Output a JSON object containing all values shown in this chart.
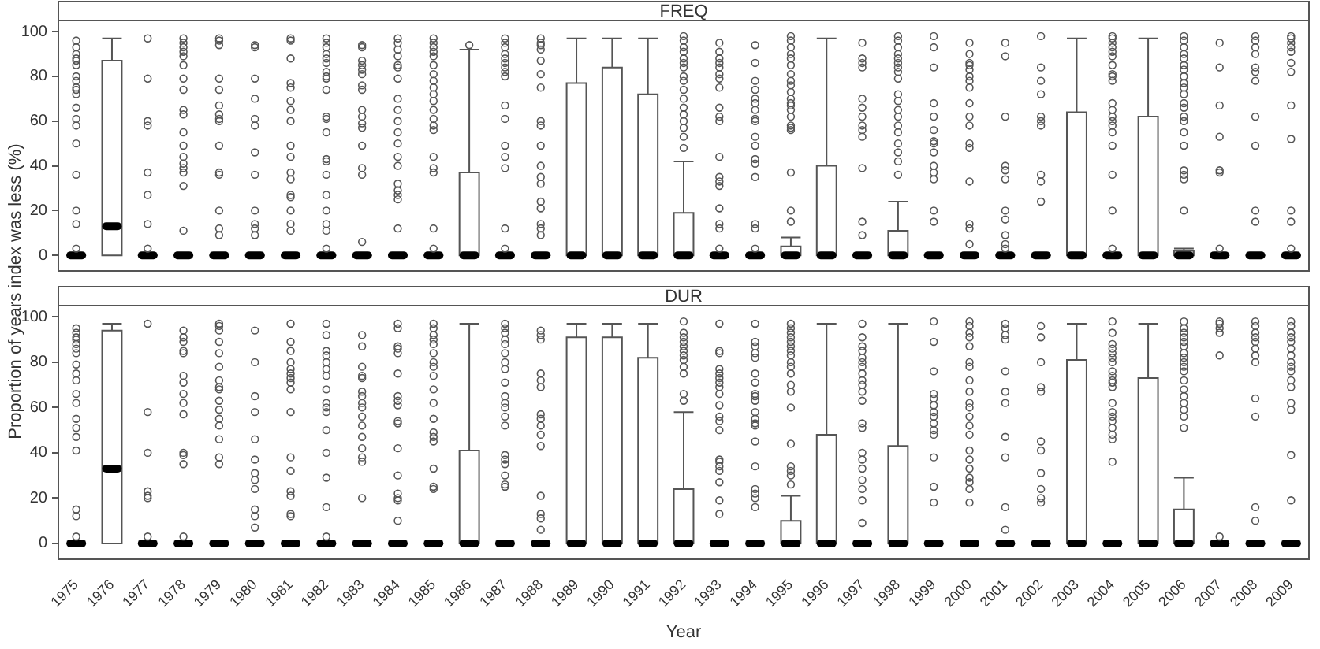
{
  "chart_data": [
    {
      "type": "box",
      "title": "FREQ",
      "ylabel": "Proportion of years index was less (%)",
      "ylim": [
        -7,
        105
      ],
      "yticks": [
        0,
        20,
        40,
        60,
        80,
        100
      ],
      "tick_labels": "y",
      "categories": [
        "1975",
        "1976",
        "1977",
        "1978",
        "1979",
        "1980",
        "1981",
        "1982",
        "1983",
        "1984",
        "1985",
        "1986",
        "1987",
        "1988",
        "1989",
        "1990",
        "1991",
        "1992",
        "1993",
        "1994",
        "1995",
        "1996",
        "1997",
        "1998",
        "1999",
        "2000",
        "2001",
        "2002",
        "2003",
        "2004",
        "2005",
        "2006",
        "2007",
        "2008",
        "2009"
      ],
      "boxes": [
        {
          "low": 0,
          "q1": 0,
          "median": 0,
          "q3": 0,
          "high": 0,
          "outliers": [
            96,
            93,
            90,
            88,
            87,
            85,
            80,
            78,
            75,
            74,
            72,
            66,
            61,
            58,
            50,
            36,
            20,
            14,
            3
          ]
        },
        {
          "low": 0,
          "q1": 0,
          "median": 13,
          "q3": 87,
          "high": 97
        },
        {
          "low": 0,
          "q1": 0,
          "median": 0,
          "q3": 0,
          "high": 0,
          "outliers": [
            97,
            79,
            60,
            58,
            37,
            27,
            14,
            3
          ]
        },
        {
          "low": 0,
          "q1": 0,
          "median": 0,
          "q3": 0,
          "high": 0,
          "outliers": [
            97,
            95,
            93,
            91,
            89,
            85,
            79,
            74,
            65,
            63,
            55,
            49,
            44,
            41,
            39,
            37,
            31,
            11
          ]
        },
        {
          "low": 0,
          "q1": 0,
          "median": 0,
          "q3": 0,
          "high": 0,
          "outliers": [
            97,
            96,
            94,
            79,
            74,
            67,
            63,
            61,
            60,
            49,
            37,
            36,
            20,
            12,
            9
          ]
        },
        {
          "low": 0,
          "q1": 0,
          "median": 0,
          "q3": 0,
          "high": 0,
          "outliers": [
            94,
            93,
            79,
            70,
            61,
            58,
            46,
            36,
            20,
            14,
            12,
            9
          ]
        },
        {
          "low": 0,
          "q1": 0,
          "median": 0,
          "q3": 0,
          "high": 0,
          "outliers": [
            97,
            96,
            88,
            77,
            75,
            69,
            65,
            60,
            49,
            44,
            37,
            34,
            27,
            26,
            20,
            14,
            11
          ]
        },
        {
          "low": 0,
          "q1": 0,
          "median": 0,
          "q3": 0,
          "high": 0,
          "outliers": [
            97,
            95,
            93,
            90,
            88,
            86,
            82,
            80,
            79,
            74,
            62,
            61,
            55,
            43,
            42,
            36,
            27,
            20,
            14,
            11,
            3
          ]
        },
        {
          "low": 0,
          "q1": 0,
          "median": 0,
          "q3": 0,
          "high": 0,
          "outliers": [
            94,
            93,
            87,
            85,
            83,
            81,
            76,
            74,
            65,
            62,
            59,
            57,
            49,
            39,
            36,
            6
          ]
        },
        {
          "low": 0,
          "q1": 0,
          "median": 0,
          "q3": 0,
          "high": 0,
          "outliers": [
            97,
            95,
            92,
            89,
            85,
            84,
            79,
            70,
            65,
            60,
            55,
            50,
            44,
            40,
            32,
            29,
            27,
            25,
            12
          ]
        },
        {
          "low": 0,
          "q1": 0,
          "median": 0,
          "q3": 0,
          "high": 0,
          "outliers": [
            97,
            95,
            93,
            91,
            89,
            85,
            81,
            78,
            75,
            72,
            69,
            65,
            61,
            58,
            56,
            44,
            39,
            37,
            12,
            3
          ]
        },
        {
          "low": 0,
          "q1": 0,
          "median": 0,
          "q3": 37,
          "high": 92,
          "outliers": [
            94
          ]
        },
        {
          "low": 0,
          "q1": 0,
          "median": 0,
          "q3": 0,
          "high": 0,
          "outliers": [
            97,
            95,
            93,
            90,
            88,
            86,
            84,
            82,
            80,
            67,
            61,
            49,
            44,
            39,
            12,
            3
          ]
        },
        {
          "low": 0,
          "q1": 0,
          "median": 0,
          "q3": 0,
          "high": 0,
          "outliers": [
            97,
            95,
            94,
            92,
            87,
            81,
            75,
            60,
            58,
            49,
            40,
            35,
            32,
            24,
            21,
            14,
            12,
            9
          ]
        },
        {
          "low": 0,
          "q1": 0,
          "median": 0,
          "q3": 77,
          "high": 97
        },
        {
          "low": 0,
          "q1": 0,
          "median": 0,
          "q3": 84,
          "high": 97
        },
        {
          "low": 0,
          "q1": 0,
          "median": 0,
          "q3": 72,
          "high": 97
        },
        {
          "low": 0,
          "q1": 0,
          "median": 0,
          "q3": 19,
          "high": 42,
          "outliers": [
            98,
            96,
            93,
            91,
            88,
            86,
            84,
            80,
            78,
            74,
            70,
            66,
            63,
            60,
            57,
            53,
            48
          ]
        },
        {
          "low": 0,
          "q1": 0,
          "median": 0,
          "q3": 0,
          "high": 0,
          "outliers": [
            95,
            91,
            88,
            86,
            84,
            81,
            79,
            75,
            66,
            62,
            60,
            44,
            35,
            33,
            31,
            21,
            14,
            12,
            3
          ]
        },
        {
          "low": 0,
          "q1": 0,
          "median": 0,
          "q3": 0,
          "high": 0,
          "outliers": [
            94,
            86,
            78,
            74,
            70,
            68,
            65,
            61,
            60,
            53,
            49,
            43,
            41,
            35,
            14,
            12,
            3
          ]
        },
        {
          "low": 0,
          "q1": 0,
          "median": 0,
          "q3": 4,
          "high": 8,
          "outliers": [
            98,
            96,
            93,
            90,
            88,
            85,
            81,
            78,
            76,
            73,
            70,
            68,
            67,
            65,
            62,
            58,
            57,
            56,
            37,
            20,
            15
          ]
        },
        {
          "low": 0,
          "q1": 0,
          "median": 0,
          "q3": 40,
          "high": 97
        },
        {
          "low": 0,
          "q1": 0,
          "median": 0,
          "q3": 0,
          "high": 0,
          "outliers": [
            95,
            88,
            86,
            84,
            70,
            66,
            62,
            58,
            56,
            53,
            39,
            15,
            9
          ]
        },
        {
          "low": 0,
          "q1": 0,
          "median": 0,
          "q3": 11,
          "high": 24,
          "outliers": [
            98,
            96,
            93,
            90,
            88,
            86,
            84,
            82,
            79,
            72,
            69,
            65,
            62,
            58,
            55,
            50,
            46,
            42,
            36
          ]
        },
        {
          "low": 0,
          "q1": 0,
          "median": 0,
          "q3": 0,
          "high": 0,
          "outliers": [
            98,
            93,
            84,
            68,
            62,
            56,
            51,
            50,
            46,
            40,
            37,
            34,
            20,
            15
          ]
        },
        {
          "low": 0,
          "q1": 0,
          "median": 0,
          "q3": 0,
          "high": 0,
          "outliers": [
            95,
            90,
            86,
            85,
            83,
            80,
            78,
            75,
            68,
            62,
            58,
            50,
            48,
            33,
            14,
            12,
            5
          ]
        },
        {
          "low": 0,
          "q1": 0,
          "median": 0,
          "q3": 0,
          "high": 0,
          "outliers": [
            95,
            89,
            62,
            40,
            38,
            34,
            20,
            16,
            9,
            5,
            3
          ]
        },
        {
          "low": 0,
          "q1": 0,
          "median": 0,
          "q3": 0,
          "high": 0,
          "outliers": [
            98,
            84,
            78,
            72,
            62,
            60,
            58,
            36,
            33,
            24
          ]
        },
        {
          "low": 0,
          "q1": 0,
          "median": 0,
          "q3": 64,
          "high": 97
        },
        {
          "low": 0,
          "q1": 0,
          "median": 0,
          "q3": 0,
          "high": 0,
          "outliers": [
            98,
            97,
            95,
            93,
            91,
            89,
            85,
            81,
            80,
            78,
            68,
            65,
            62,
            60,
            58,
            55,
            49,
            36,
            20,
            3
          ]
        },
        {
          "low": 0,
          "q1": 0,
          "median": 0,
          "q3": 62,
          "high": 97
        },
        {
          "low": 0,
          "q1": 0,
          "median": 0,
          "q3": 2,
          "high": 3,
          "outliers": [
            98,
            96,
            93,
            90,
            88,
            85,
            83,
            80,
            77,
            75,
            72,
            68,
            66,
            62,
            60,
            55,
            49,
            38,
            36,
            34,
            20
          ]
        },
        {
          "low": 0,
          "q1": 0,
          "median": 0,
          "q3": 0,
          "high": 0,
          "outliers": [
            95,
            84,
            67,
            53,
            38,
            37,
            3
          ]
        },
        {
          "low": 0,
          "q1": 0,
          "median": 0,
          "q3": 0,
          "high": 0,
          "outliers": [
            98,
            96,
            93,
            90,
            84,
            82,
            78,
            62,
            49,
            20,
            15
          ]
        },
        {
          "low": 0,
          "q1": 0,
          "median": 0,
          "q3": 0,
          "high": 0,
          "outliers": [
            98,
            97,
            95,
            93,
            91,
            86,
            82,
            67,
            52,
            20,
            15,
            3
          ]
        }
      ]
    },
    {
      "type": "box",
      "title": "DUR",
      "xlabel": "Year",
      "ylim": [
        -7,
        105
      ],
      "yticks": [
        0,
        20,
        40,
        60,
        80,
        100
      ],
      "categories": [
        "1975",
        "1976",
        "1977",
        "1978",
        "1979",
        "1980",
        "1981",
        "1982",
        "1983",
        "1984",
        "1985",
        "1986",
        "1987",
        "1988",
        "1989",
        "1990",
        "1991",
        "1992",
        "1993",
        "1994",
        "1995",
        "1996",
        "1997",
        "1998",
        "1999",
        "2000",
        "2001",
        "2002",
        "2003",
        "2004",
        "2005",
        "2006",
        "2007",
        "2008",
        "2009"
      ],
      "boxes": [
        {
          "low": 0,
          "q1": 0,
          "median": 0,
          "q3": 0,
          "high": 0,
          "outliers": [
            95,
            93,
            91,
            90,
            88,
            86,
            84,
            79,
            75,
            72,
            66,
            62,
            55,
            51,
            47,
            41,
            15,
            12,
            3
          ]
        },
        {
          "low": 0,
          "q1": 0,
          "median": 33,
          "q3": 94,
          "high": 97
        },
        {
          "low": 0,
          "q1": 0,
          "median": 0,
          "q3": 0,
          "high": 0,
          "outliers": [
            97,
            58,
            40,
            23,
            21,
            20,
            3
          ]
        },
        {
          "low": 0,
          "q1": 0,
          "median": 0,
          "q3": 0,
          "high": 0,
          "outliers": [
            94,
            91,
            89,
            85,
            84,
            74,
            71,
            66,
            62,
            57,
            40,
            39,
            35,
            3
          ]
        },
        {
          "low": 0,
          "q1": 0,
          "median": 0,
          "q3": 0,
          "high": 0,
          "outliers": [
            97,
            96,
            94,
            89,
            84,
            78,
            72,
            69,
            68,
            63,
            59,
            55,
            52,
            46,
            38,
            35
          ]
        },
        {
          "low": 0,
          "q1": 0,
          "median": 0,
          "q3": 0,
          "high": 0,
          "outliers": [
            94,
            80,
            65,
            58,
            46,
            37,
            31,
            28,
            24,
            15,
            12,
            7
          ]
        },
        {
          "low": 0,
          "q1": 0,
          "median": 0,
          "q3": 0,
          "high": 0,
          "outliers": [
            97,
            89,
            85,
            80,
            77,
            75,
            73,
            71,
            68,
            58,
            38,
            32,
            23,
            21,
            13,
            12
          ]
        },
        {
          "low": 0,
          "q1": 0,
          "median": 0,
          "q3": 0,
          "high": 0,
          "outliers": [
            97,
            92,
            85,
            83,
            80,
            77,
            74,
            68,
            62,
            60,
            58,
            50,
            40,
            29,
            16,
            3
          ]
        },
        {
          "low": 0,
          "q1": 0,
          "median": 0,
          "q3": 0,
          "high": 0,
          "outliers": [
            92,
            87,
            78,
            74,
            73,
            67,
            65,
            62,
            60,
            56,
            52,
            47,
            42,
            38,
            36,
            20
          ]
        },
        {
          "low": 0,
          "q1": 0,
          "median": 0,
          "q3": 0,
          "high": 0,
          "outliers": [
            97,
            95,
            87,
            86,
            84,
            75,
            65,
            63,
            61,
            54,
            53,
            42,
            30,
            22,
            20,
            19,
            10
          ]
        },
        {
          "low": 0,
          "q1": 0,
          "median": 0,
          "q3": 0,
          "high": 0,
          "outliers": [
            97,
            95,
            92,
            90,
            88,
            84,
            80,
            78,
            74,
            68,
            62,
            55,
            49,
            47,
            45,
            33,
            25,
            24
          ]
        },
        {
          "low": 0,
          "q1": 0,
          "median": 0,
          "q3": 41,
          "high": 97
        },
        {
          "low": 0,
          "q1": 0,
          "median": 0,
          "q3": 0,
          "high": 0,
          "outliers": [
            97,
            95,
            93,
            90,
            88,
            84,
            80,
            77,
            71,
            65,
            62,
            60,
            56,
            52,
            39,
            37,
            35,
            30,
            26,
            25
          ]
        },
        {
          "low": 0,
          "q1": 0,
          "median": 0,
          "q3": 0,
          "high": 0,
          "outliers": [
            94,
            92,
            90,
            75,
            72,
            69,
            57,
            55,
            52,
            48,
            43,
            21,
            13,
            11,
            6
          ]
        },
        {
          "low": 0,
          "q1": 0,
          "median": 0,
          "q3": 91,
          "high": 97
        },
        {
          "low": 0,
          "q1": 0,
          "median": 0,
          "q3": 91,
          "high": 97
        },
        {
          "low": 0,
          "q1": 0,
          "median": 0,
          "q3": 82,
          "high": 97
        },
        {
          "low": 0,
          "q1": 0,
          "median": 0,
          "q3": 24,
          "high": 58,
          "outliers": [
            98,
            93,
            91,
            89,
            87,
            85,
            83,
            81,
            78,
            75,
            66,
            63
          ]
        },
        {
          "low": 0,
          "q1": 0,
          "median": 0,
          "q3": 0,
          "high": 0,
          "outliers": [
            97,
            85,
            84,
            77,
            75,
            73,
            71,
            69,
            66,
            61,
            56,
            54,
            50,
            37,
            36,
            34,
            32,
            27,
            19,
            13
          ]
        },
        {
          "low": 0,
          "q1": 0,
          "median": 0,
          "q3": 0,
          "high": 0,
          "outliers": [
            97,
            89,
            87,
            84,
            82,
            75,
            71,
            66,
            65,
            63,
            58,
            55,
            53,
            52,
            45,
            34,
            24,
            22,
            20,
            16
          ]
        },
        {
          "low": 0,
          "q1": 0,
          "median": 0,
          "q3": 10,
          "high": 21,
          "outliers": [
            97,
            95,
            93,
            91,
            89,
            87,
            85,
            83,
            80,
            78,
            75,
            70,
            67,
            60,
            44,
            34,
            32,
            30,
            26
          ]
        },
        {
          "low": 0,
          "q1": 0,
          "median": 0,
          "q3": 48,
          "high": 97
        },
        {
          "low": 0,
          "q1": 0,
          "median": 0,
          "q3": 0,
          "high": 0,
          "outliers": [
            97,
            91,
            87,
            85,
            82,
            80,
            78,
            75,
            72,
            70,
            67,
            63,
            53,
            51,
            40,
            37,
            33,
            28,
            24,
            19,
            9
          ]
        },
        {
          "low": 0,
          "q1": 0,
          "median": 0,
          "q3": 43,
          "high": 97
        },
        {
          "low": 0,
          "q1": 0,
          "median": 0,
          "q3": 0,
          "high": 0,
          "outliers": [
            98,
            89,
            76,
            66,
            64,
            61,
            58,
            56,
            53,
            50,
            48,
            38,
            25,
            18
          ]
        },
        {
          "low": 0,
          "q1": 0,
          "median": 0,
          "q3": 0,
          "high": 0,
          "outliers": [
            98,
            96,
            93,
            91,
            87,
            80,
            78,
            72,
            67,
            62,
            60,
            56,
            52,
            48,
            41,
            37,
            33,
            29,
            27,
            24,
            18
          ]
        },
        {
          "low": 0,
          "q1": 0,
          "median": 0,
          "q3": 0,
          "high": 0,
          "outliers": [
            97,
            95,
            92,
            90,
            76,
            67,
            62,
            47,
            38,
            16,
            6
          ]
        },
        {
          "low": 0,
          "q1": 0,
          "median": 0,
          "q3": 0,
          "high": 0,
          "outliers": [
            96,
            91,
            80,
            69,
            67,
            45,
            41,
            31,
            24,
            20,
            18
          ]
        },
        {
          "low": 0,
          "q1": 0,
          "median": 0,
          "q3": 81,
          "high": 97
        },
        {
          "low": 0,
          "q1": 0,
          "median": 0,
          "q3": 0,
          "high": 0,
          "outliers": [
            98,
            93,
            88,
            86,
            84,
            82,
            80,
            76,
            74,
            72,
            71,
            69,
            62,
            58,
            56,
            54,
            51,
            48,
            46,
            36
          ]
        },
        {
          "low": 0,
          "q1": 0,
          "median": 0,
          "q3": 73,
          "high": 97
        },
        {
          "low": 0,
          "q1": 0,
          "median": 0,
          "q3": 15,
          "high": 29,
          "outliers": [
            98,
            95,
            93,
            91,
            89,
            87,
            84,
            82,
            80,
            78,
            76,
            72,
            68,
            65,
            62,
            59,
            56,
            51
          ]
        },
        {
          "low": 0,
          "q1": 0,
          "median": 0,
          "q3": 0,
          "high": 0,
          "outliers": [
            98,
            97,
            95,
            93,
            83,
            3
          ]
        },
        {
          "low": 0,
          "q1": 0,
          "median": 0,
          "q3": 0,
          "high": 0,
          "outliers": [
            98,
            96,
            93,
            91,
            89,
            86,
            83,
            80,
            64,
            56,
            16,
            10
          ]
        },
        {
          "low": 0,
          "q1": 0,
          "median": 0,
          "q3": 0,
          "high": 0,
          "outliers": [
            98,
            96,
            93,
            91,
            89,
            86,
            83,
            80,
            78,
            76,
            72,
            69,
            62,
            59,
            39,
            19
          ]
        }
      ]
    }
  ]
}
